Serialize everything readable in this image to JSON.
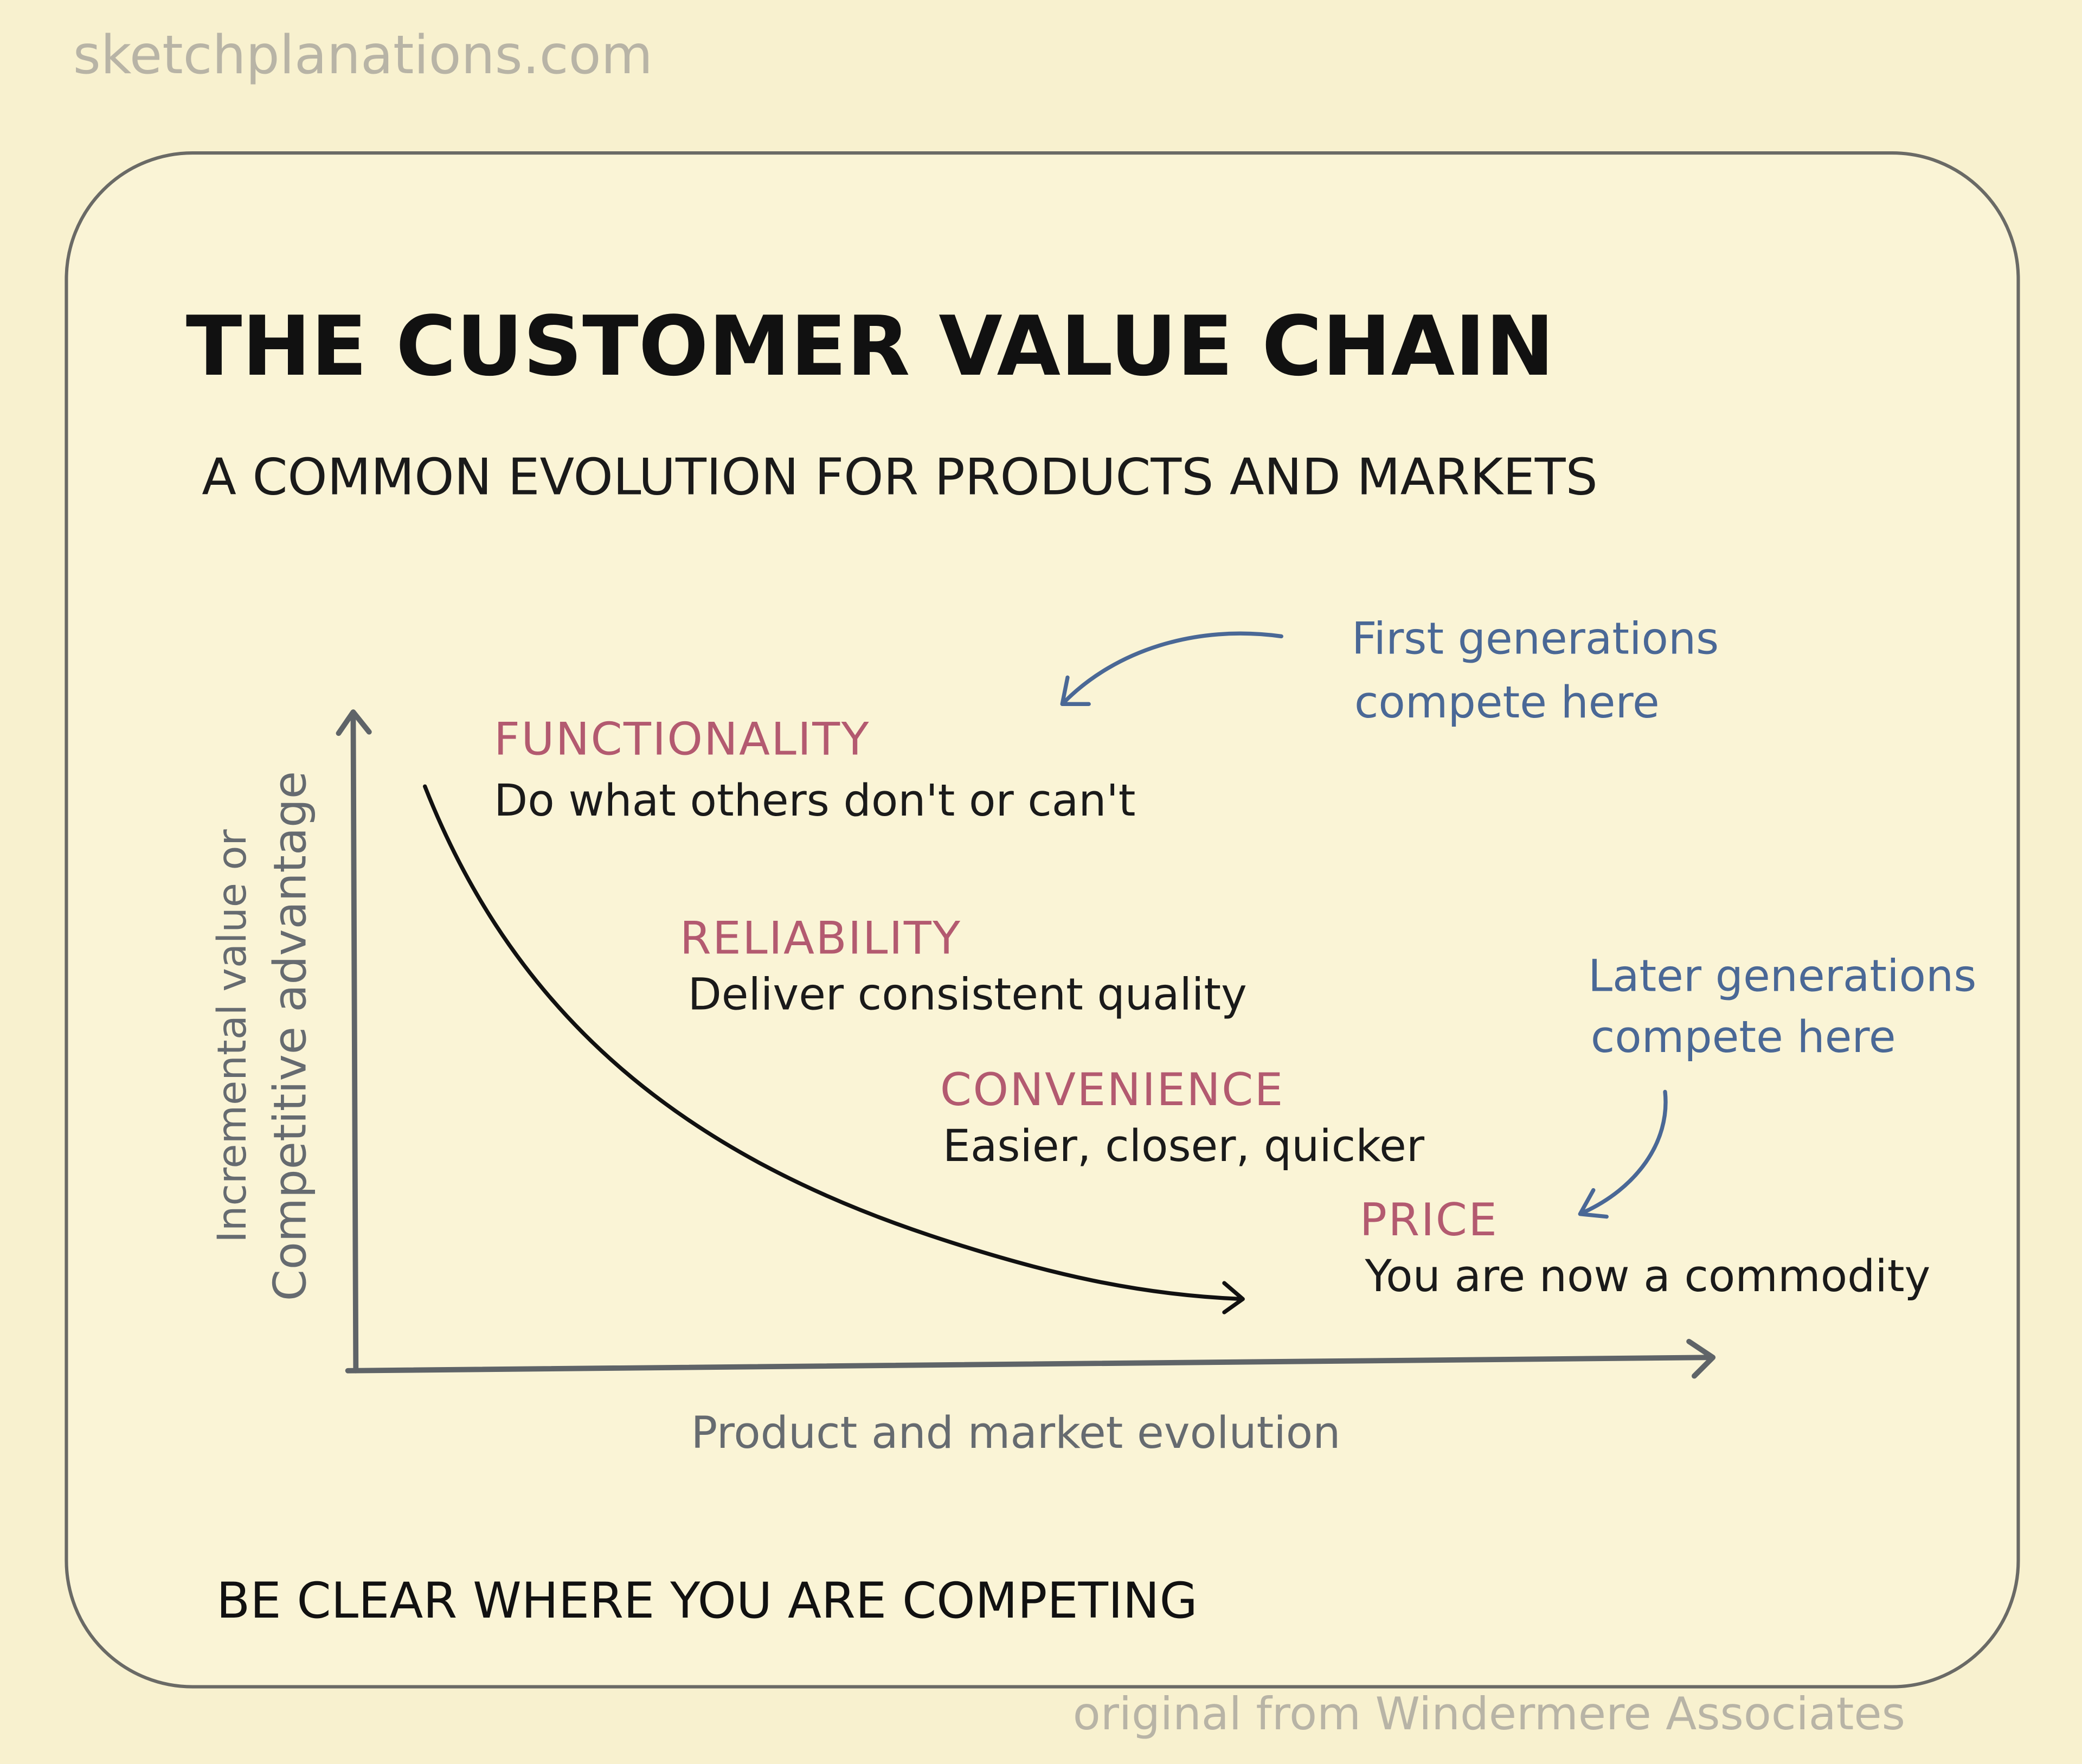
{
  "site": "sketchplanations.com",
  "title": "THE CUSTOMER VALUE CHAIN",
  "subtitle": "A COMMON EVOLUTION FOR PRODUCTS AND MARKETS",
  "y_axis_label": [
    "Incremental value or",
    "Competitive advantage"
  ],
  "x_axis_label": "Product and market evolution",
  "stages": [
    {
      "label": "FUNCTIONALITY",
      "description": "Do what others don't or can't"
    },
    {
      "label": "RELIABILITY",
      "description": "Deliver consistent quality"
    },
    {
      "label": "CONVENIENCE",
      "description": "Easier, closer, quicker"
    },
    {
      "label": "PRICE",
      "description": "You are now a commodity"
    }
  ],
  "annotations": [
    {
      "lines": [
        "First generations",
        "compete here"
      ]
    },
    {
      "lines": [
        "Later generations",
        "compete here"
      ]
    }
  ],
  "footer": "BE CLEAR WHERE YOU ARE COMPETING",
  "credit": "original from Windermere Associates"
}
